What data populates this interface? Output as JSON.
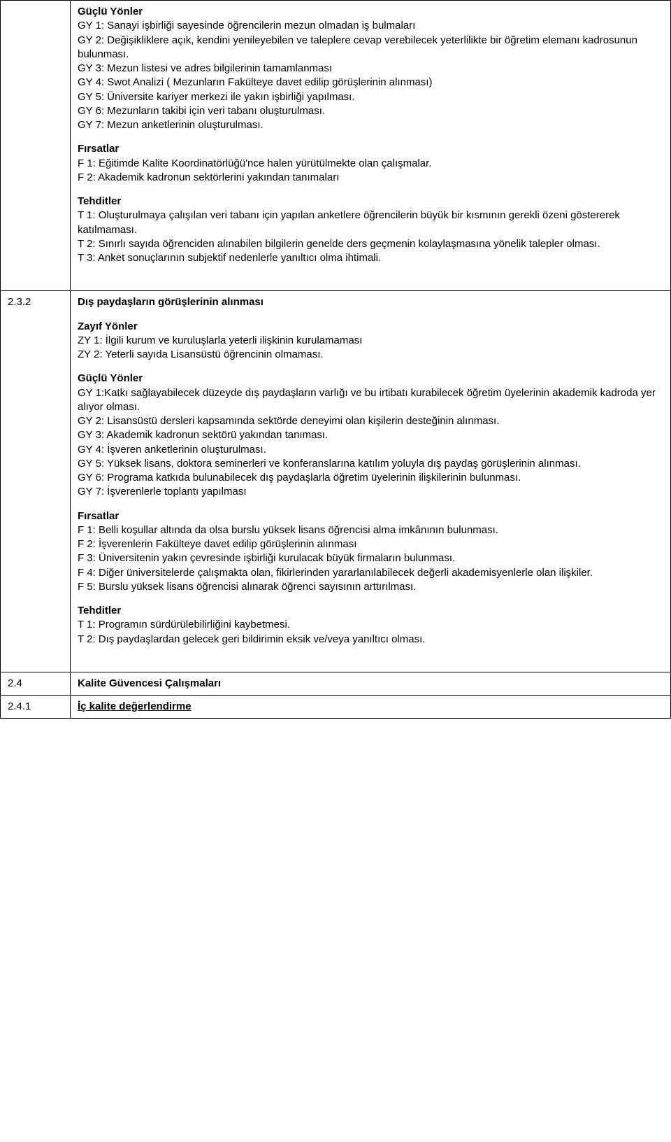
{
  "rows": [
    {
      "num": "",
      "title": "",
      "blocks": [
        {
          "heading": "Güçlü Yönler",
          "lines": [
            "GY 1: Sanayi işbirliği sayesinde öğrencilerin mezun olmadan iş bulmaları",
            "GY 2: Değişikliklere açık, kendini yenileyebilen ve taleplere cevap verebilecek yeterlilikte bir öğretim elemanı kadrosunun bulunması.",
            "GY 3: Mezun listesi ve adres bilgilerinin tamamlanması",
            "GY 4: Swot Analizi ( Mezunların Fakülteye davet edilip görüşlerinin alınması)",
            "GY 5: Üniversite kariyer merkezi ile yakın işbirliği yapılması.",
            "GY 6: Mezunların takibi için veri tabanı oluşturulması.",
            "GY 7: Mezun anketlerinin oluşturulması."
          ]
        },
        {
          "heading": "Fırsatlar",
          "lines": [
            "F 1: Eğitimde Kalite Koordinatörlüğü'nce halen yürütülmekte olan çalışmalar.",
            "F 2: Akademik kadronun sektörlerini yakından tanımaları"
          ]
        },
        {
          "heading": "Tehditler",
          "lines": [
            "T 1: Oluşturulmaya çalışılan veri tabanı için yapılan anketlere öğrencilerin büyük bir kısmının gerekli özeni göstererek katılmaması.",
            "T 2: Sınırlı sayıda öğrenciden alınabilen bilgilerin genelde ders geçmenin kolaylaşmasına yönelik talepler olması.",
            "T 3: Anket sonuçlarının subjektif nedenlerle yanıltıcı olma ihtimali."
          ]
        }
      ]
    },
    {
      "num": "2.3.2",
      "title": "Dış paydaşların görüşlerinin alınması",
      "blocks": [
        {
          "heading": "Zayıf Yönler",
          "lines": [
            "ZY 1: İlgili kurum ve kuruluşlarla yeterli ilişkinin kurulamaması",
            "ZY 2: Yeterli sayıda Lisansüstü öğrencinin olmaması."
          ]
        },
        {
          "heading": "Güçlü Yönler",
          "lines": [
            "GY 1:Katkı sağlayabilecek düzeyde dış paydaşların varlığı ve bu irtibatı kurabilecek öğretim üyelerinin akademik kadroda yer alıyor olması.",
            "GY 2: Lisansüstü dersleri kapsamında sektörde deneyimi olan kişilerin desteğinin alınması.",
            "GY 3: Akademik kadronun sektörü yakından tanıması.",
            "GY 4: İşveren anketlerinin oluşturulması.",
            "GY 5: Yüksek lisans, doktora seminerleri ve konferanslarına katılım yoluyla dış paydaş görüşlerinin alınması.",
            "GY 6: Programa katkıda bulunabilecek dış paydaşlarla öğretim üyelerinin ilişkilerinin bulunması.",
            "GY 7: İşverenlerle toplantı yapılması"
          ]
        },
        {
          "heading": "Fırsatlar",
          "lines": [
            "F 1: Belli koşullar altında da olsa burslu yüksek lisans öğrencisi alma imkânının bulunması.",
            "F 2: İşverenlerin Fakülteye davet edilip görüşlerinin alınması",
            "F 3: Üniversitenin yakın çevresinde işbirliği kurulacak büyük firmaların bulunması.",
            "F 4: Diğer üniversitelerde çalışmakta olan, fikirlerinden yararlanılabilecek değerli akademisyenlerle olan ilişkiler.",
            "F 5: Burslu yüksek lisans öğrencisi alınarak öğrenci sayısının arttırılması."
          ]
        },
        {
          "heading": "Tehditler",
          "lines": [
            "T 1: Programın sürdürülebilirliğini kaybetmesi.",
            "T 2: Dış paydaşlardan gelecek geri bildirimin eksik ve/veya yanıltıcı olması."
          ]
        }
      ]
    },
    {
      "num": "2.4",
      "title": "Kalite Güvencesi Çalışmaları",
      "blocks": []
    },
    {
      "num": "2.4.1",
      "title": "İç kalite değerlendirme",
      "underline": true,
      "blocks": []
    }
  ]
}
